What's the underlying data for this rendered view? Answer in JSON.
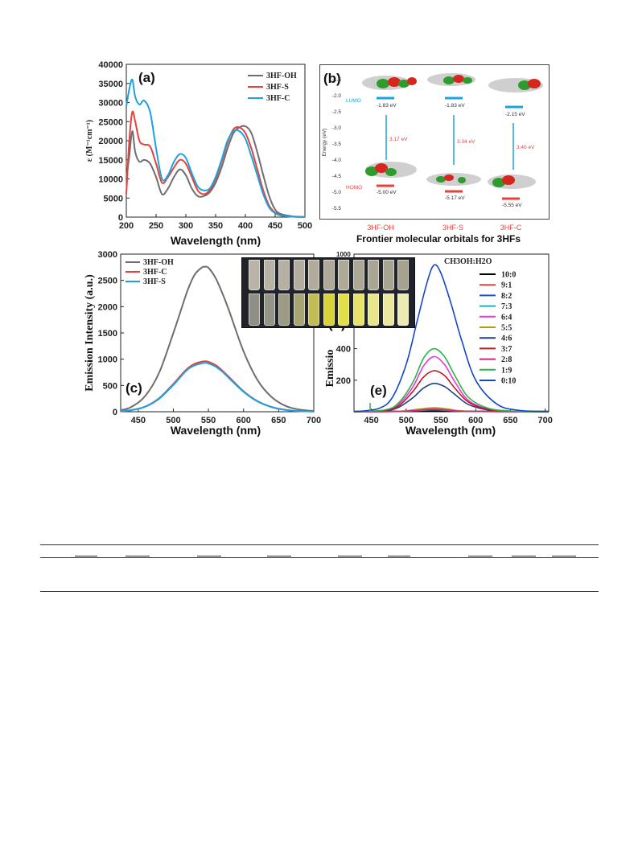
{
  "panel_a": {
    "label": "(a)",
    "ylabel": "ε (M⁻¹cm⁻¹)",
    "xlabel": "Wavelength (nm)",
    "legend": [
      "3HF-OH",
      "3HF-S",
      "3HF-C"
    ],
    "colors": {
      "3HF-OH": "#6e6e6e",
      "3HF-S": "#e8413c",
      "3HF-C": "#1ba3e0"
    }
  },
  "panel_b": {
    "label": "(b)",
    "ylabel": "Energy (eV)",
    "lumo": "LUMO",
    "homo": "HOMO",
    "lumo_values": [
      "-1.83 eV",
      "-1.83 eV",
      "-2.15 eV"
    ],
    "homo_values": [
      "-5.00 eV",
      "-5.17 eV",
      "-5.55 eV"
    ],
    "gaps": [
      "3.17 eV",
      "3.34 eV",
      "3.40 eV"
    ],
    "names": [
      "3HF-OH",
      "3HF-S",
      "3HF-C"
    ],
    "caption": "Frontier molecular orbitals for 3HFs"
  },
  "panel_c": {
    "label": "(c)",
    "ylabel": "Emission Intensity (a.u.)",
    "xlabel": "Wavelength (nm)",
    "legend": [
      "3HF-OH",
      "3HF-C",
      "3HF-S"
    ]
  },
  "panel_d": {
    "label": "(d)",
    "top_tick": "1000"
  },
  "panel_e": {
    "label": "(e)",
    "ylabel": "Emissio",
    "xlabel": "Wavelength (nm)",
    "legend_title": "CH3OH:H2O",
    "ratios": [
      "10:0",
      "9:1",
      "8:2",
      "7:3",
      "6:4",
      "5:5",
      "4:6",
      "3:7",
      "2:8",
      "1:9",
      "0:10"
    ],
    "colors": [
      "#000000",
      "#e8413c",
      "#1f4fc8",
      "#1ab6b6",
      "#e63ad8",
      "#b59a18",
      "#1f3f8a",
      "#c4161c",
      "#d61f8a",
      "#2fb34a",
      "#1446c8"
    ]
  },
  "chart_data": [
    {
      "type": "line",
      "title": "(a)",
      "xlabel": "Wavelength (nm)",
      "ylabel": "ε (M⁻¹cm⁻¹)",
      "xlim": [
        200,
        500
      ],
      "ylim": [
        0,
        40000
      ],
      "xticks": [
        200,
        250,
        300,
        350,
        400,
        450,
        500
      ],
      "yticks": [
        0,
        5000,
        10000,
        15000,
        20000,
        25000,
        30000,
        35000,
        40000
      ],
      "series": [
        {
          "name": "3HF-OH",
          "x": [
            200,
            205,
            210,
            215,
            222,
            230,
            240,
            250,
            260,
            270,
            280,
            290,
            300,
            310,
            320,
            330,
            340,
            350,
            360,
            370,
            380,
            390,
            400,
            410,
            420,
            430,
            440,
            450,
            460,
            480,
            500
          ],
          "y": [
            10000,
            16000,
            22500,
            17000,
            14500,
            15000,
            14000,
            10500,
            6000,
            7500,
            10500,
            12500,
            11000,
            7500,
            5500,
            5500,
            6500,
            9000,
            13000,
            18000,
            22000,
            23500,
            23800,
            22000,
            17000,
            11000,
            5500,
            2000,
            800,
            200,
            50
          ]
        },
        {
          "name": "3HF-S",
          "x": [
            200,
            205,
            210,
            215,
            222,
            230,
            240,
            250,
            260,
            270,
            280,
            290,
            300,
            310,
            320,
            330,
            340,
            350,
            360,
            370,
            380,
            390,
            400,
            410,
            420,
            430,
            440,
            450,
            460,
            480,
            500
          ],
          "y": [
            6000,
            20000,
            27500,
            25000,
            20000,
            19000,
            18500,
            14000,
            9000,
            10500,
            13000,
            15000,
            14000,
            10500,
            7000,
            6000,
            7000,
            10000,
            14500,
            19500,
            23000,
            23500,
            22000,
            18000,
            12500,
            7000,
            3000,
            1200,
            500,
            100,
            20
          ]
        },
        {
          "name": "3HF-C",
          "x": [
            200,
            205,
            210,
            215,
            222,
            230,
            240,
            250,
            260,
            270,
            280,
            290,
            300,
            310,
            320,
            330,
            340,
            350,
            360,
            370,
            380,
            390,
            400,
            410,
            420,
            430,
            440,
            450,
            460,
            480,
            500
          ],
          "y": [
            29000,
            33500,
            36000,
            31500,
            29500,
            30500,
            27500,
            18000,
            10000,
            11000,
            14500,
            16500,
            15500,
            11500,
            8000,
            7000,
            7500,
            10500,
            15000,
            20000,
            22500,
            22500,
            20500,
            16000,
            11000,
            6000,
            2500,
            1000,
            400,
            100,
            20
          ]
        }
      ]
    },
    {
      "type": "line",
      "title": "(c)",
      "xlabel": "Wavelength (nm)",
      "ylabel": "Emission Intensity (a.u.)",
      "xlim": [
        425,
        700
      ],
      "ylim": [
        0,
        3000
      ],
      "xticks": [
        450,
        500,
        550,
        600,
        650,
        700
      ],
      "yticks": [
        0,
        500,
        1000,
        1500,
        2000,
        2500,
        3000
      ],
      "series": [
        {
          "name": "3HF-OH",
          "x": [
            425,
            440,
            460,
            480,
            500,
            510,
            520,
            530,
            540,
            545,
            550,
            560,
            570,
            580,
            600,
            620,
            640,
            660,
            680,
            700
          ],
          "y": [
            30,
            90,
            300,
            750,
            1500,
            1900,
            2300,
            2600,
            2740,
            2760,
            2740,
            2550,
            2250,
            1900,
            1150,
            600,
            280,
            110,
            40,
            15
          ]
        },
        {
          "name": "3HF-C",
          "x": [
            425,
            440,
            460,
            480,
            500,
            510,
            520,
            530,
            540,
            545,
            550,
            560,
            570,
            580,
            600,
            620,
            640,
            660,
            680,
            700
          ],
          "y": [
            10,
            30,
            100,
            260,
            530,
            680,
            820,
            910,
            950,
            960,
            950,
            890,
            780,
            650,
            390,
            200,
            90,
            35,
            12,
            5
          ]
        },
        {
          "name": "3HF-S",
          "x": [
            425,
            440,
            460,
            480,
            500,
            510,
            520,
            530,
            540,
            545,
            550,
            560,
            570,
            580,
            600,
            620,
            640,
            660,
            680,
            700
          ],
          "y": [
            10,
            30,
            95,
            250,
            510,
            660,
            800,
            880,
            920,
            930,
            920,
            860,
            760,
            630,
            380,
            195,
            88,
            34,
            12,
            5
          ]
        }
      ]
    },
    {
      "type": "line",
      "title": "(e)",
      "xlabel": "Wavelength (nm)",
      "ylabel": "Emissio",
      "xlim": [
        425,
        705
      ],
      "ylim": [
        0,
        1000
      ],
      "xticks": [
        450,
        500,
        550,
        600,
        650,
        700
      ],
      "yticks": [
        200,
        400
      ],
      "series": [
        {
          "name": "10:0",
          "x": [
            425,
            540,
            705
          ],
          "y": [
            2,
            4,
            2
          ]
        },
        {
          "name": "9:1",
          "x": [
            425,
            490,
            520,
            540,
            560,
            590,
            705
          ],
          "y": [
            0,
            3,
            15,
            20,
            15,
            3,
            0
          ]
        },
        {
          "name": "8:2",
          "x": [
            425,
            490,
            520,
            540,
            560,
            590,
            705
          ],
          "y": [
            0,
            2,
            10,
            14,
            10,
            2,
            0
          ]
        },
        {
          "name": "7:3",
          "x": [
            425,
            490,
            520,
            540,
            560,
            590,
            705
          ],
          "y": [
            0,
            2,
            8,
            12,
            8,
            2,
            0
          ]
        },
        {
          "name": "6:4",
          "x": [
            425,
            470,
            490,
            510,
            525,
            540,
            555,
            570,
            590,
            620,
            660,
            705
          ],
          "y": [
            0,
            10,
            50,
            160,
            290,
            350,
            300,
            190,
            70,
            15,
            2,
            0
          ]
        },
        {
          "name": "5:5",
          "x": [
            425,
            490,
            520,
            540,
            560,
            590,
            705
          ],
          "y": [
            0,
            3,
            18,
            25,
            18,
            3,
            0
          ]
        },
        {
          "name": "4:6",
          "x": [
            425,
            470,
            490,
            510,
            525,
            540,
            555,
            570,
            590,
            620,
            660,
            705
          ],
          "y": [
            0,
            6,
            30,
            90,
            150,
            180,
            160,
            110,
            45,
            10,
            1,
            0
          ]
        },
        {
          "name": "3:7",
          "x": [
            425,
            470,
            490,
            510,
            525,
            540,
            555,
            570,
            590,
            620,
            660,
            705
          ],
          "y": [
            0,
            8,
            40,
            130,
            220,
            260,
            230,
            150,
            60,
            12,
            2,
            0
          ]
        },
        {
          "name": "2:8",
          "x": [
            425,
            490,
            520,
            540,
            560,
            590,
            705
          ],
          "y": [
            0,
            2,
            10,
            14,
            10,
            2,
            0
          ]
        },
        {
          "name": "1:9",
          "x": [
            425,
            470,
            490,
            510,
            525,
            540,
            555,
            570,
            590,
            620,
            660,
            705
          ],
          "y": [
            0,
            12,
            60,
            190,
            340,
            400,
            350,
            230,
            90,
            20,
            3,
            0
          ]
        },
        {
          "name": "0:10",
          "x": [
            425,
            460,
            480,
            500,
            515,
            530,
            540,
            550,
            565,
            580,
            600,
            630,
            660,
            705
          ],
          "y": [
            0,
            20,
            90,
            300,
            560,
            820,
            930,
            880,
            680,
            450,
            200,
            50,
            10,
            0
          ]
        }
      ]
    }
  ]
}
